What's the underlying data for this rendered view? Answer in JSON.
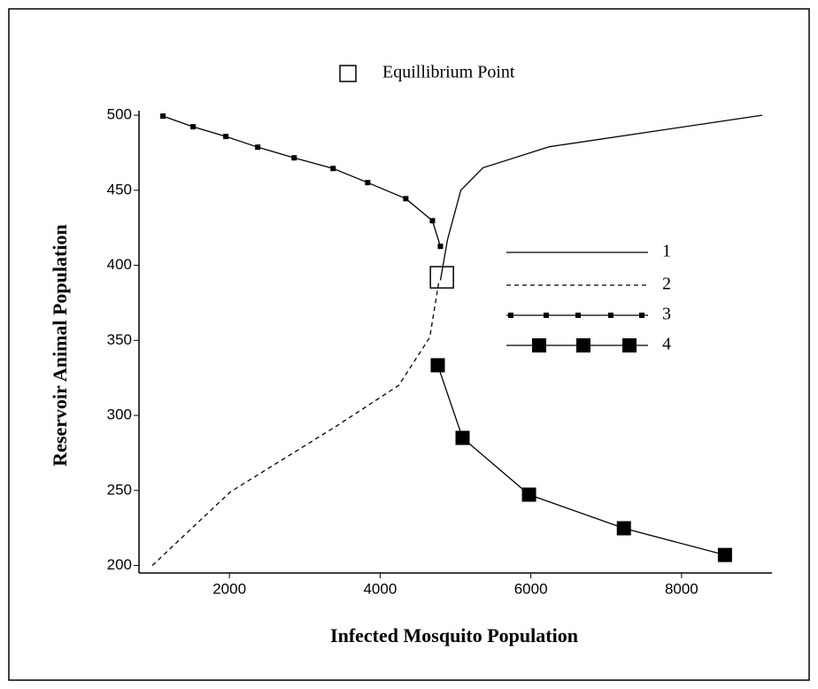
{
  "chart_data": {
    "type": "line",
    "xlabel": "Infected Mosquito Population",
    "ylabel": "Reservoir Animal Population",
    "xlim": [
      800,
      9200
    ],
    "ylim": [
      195,
      503
    ],
    "xticks": [
      2000,
      4000,
      6000,
      8000
    ],
    "yticks": [
      200,
      250,
      300,
      350,
      400,
      450,
      500
    ],
    "series": [
      {
        "name": "1",
        "color": "#000000",
        "style": "solid",
        "marker": "none",
        "x": [
          4800,
          4894,
          5071,
          5365,
          6247,
          9071
        ],
        "values": [
          390,
          417,
          450,
          465,
          479,
          500
        ]
      },
      {
        "name": "2",
        "color": "#000000",
        "style": "dashed",
        "marker": "none",
        "x": [
          977,
          2012,
          3424,
          4247,
          4659,
          4776
        ],
        "values": [
          200,
          249,
          293,
          320,
          352,
          388
        ]
      },
      {
        "name": "3",
        "color": "#000000",
        "style": "solid",
        "marker": "small",
        "x": [
          1118,
          1518,
          1953,
          2376,
          2859,
          3376,
          3835,
          4341,
          4694,
          4800
        ],
        "values": [
          499.4,
          492.3,
          485.8,
          478.7,
          471.6,
          464.5,
          455.1,
          444.4,
          429.7,
          412.6
        ]
      },
      {
        "name": "4",
        "color": "#000000",
        "style": "solid",
        "marker": "large",
        "x": [
          4765,
          5094,
          5976,
          7235,
          8576
        ],
        "values": [
          333.4,
          285.0,
          247.2,
          224.8,
          207.0
        ]
      }
    ],
    "equilibrium": {
      "name": "Equillibrium Point",
      "x": 4820,
      "y": 392
    }
  }
}
